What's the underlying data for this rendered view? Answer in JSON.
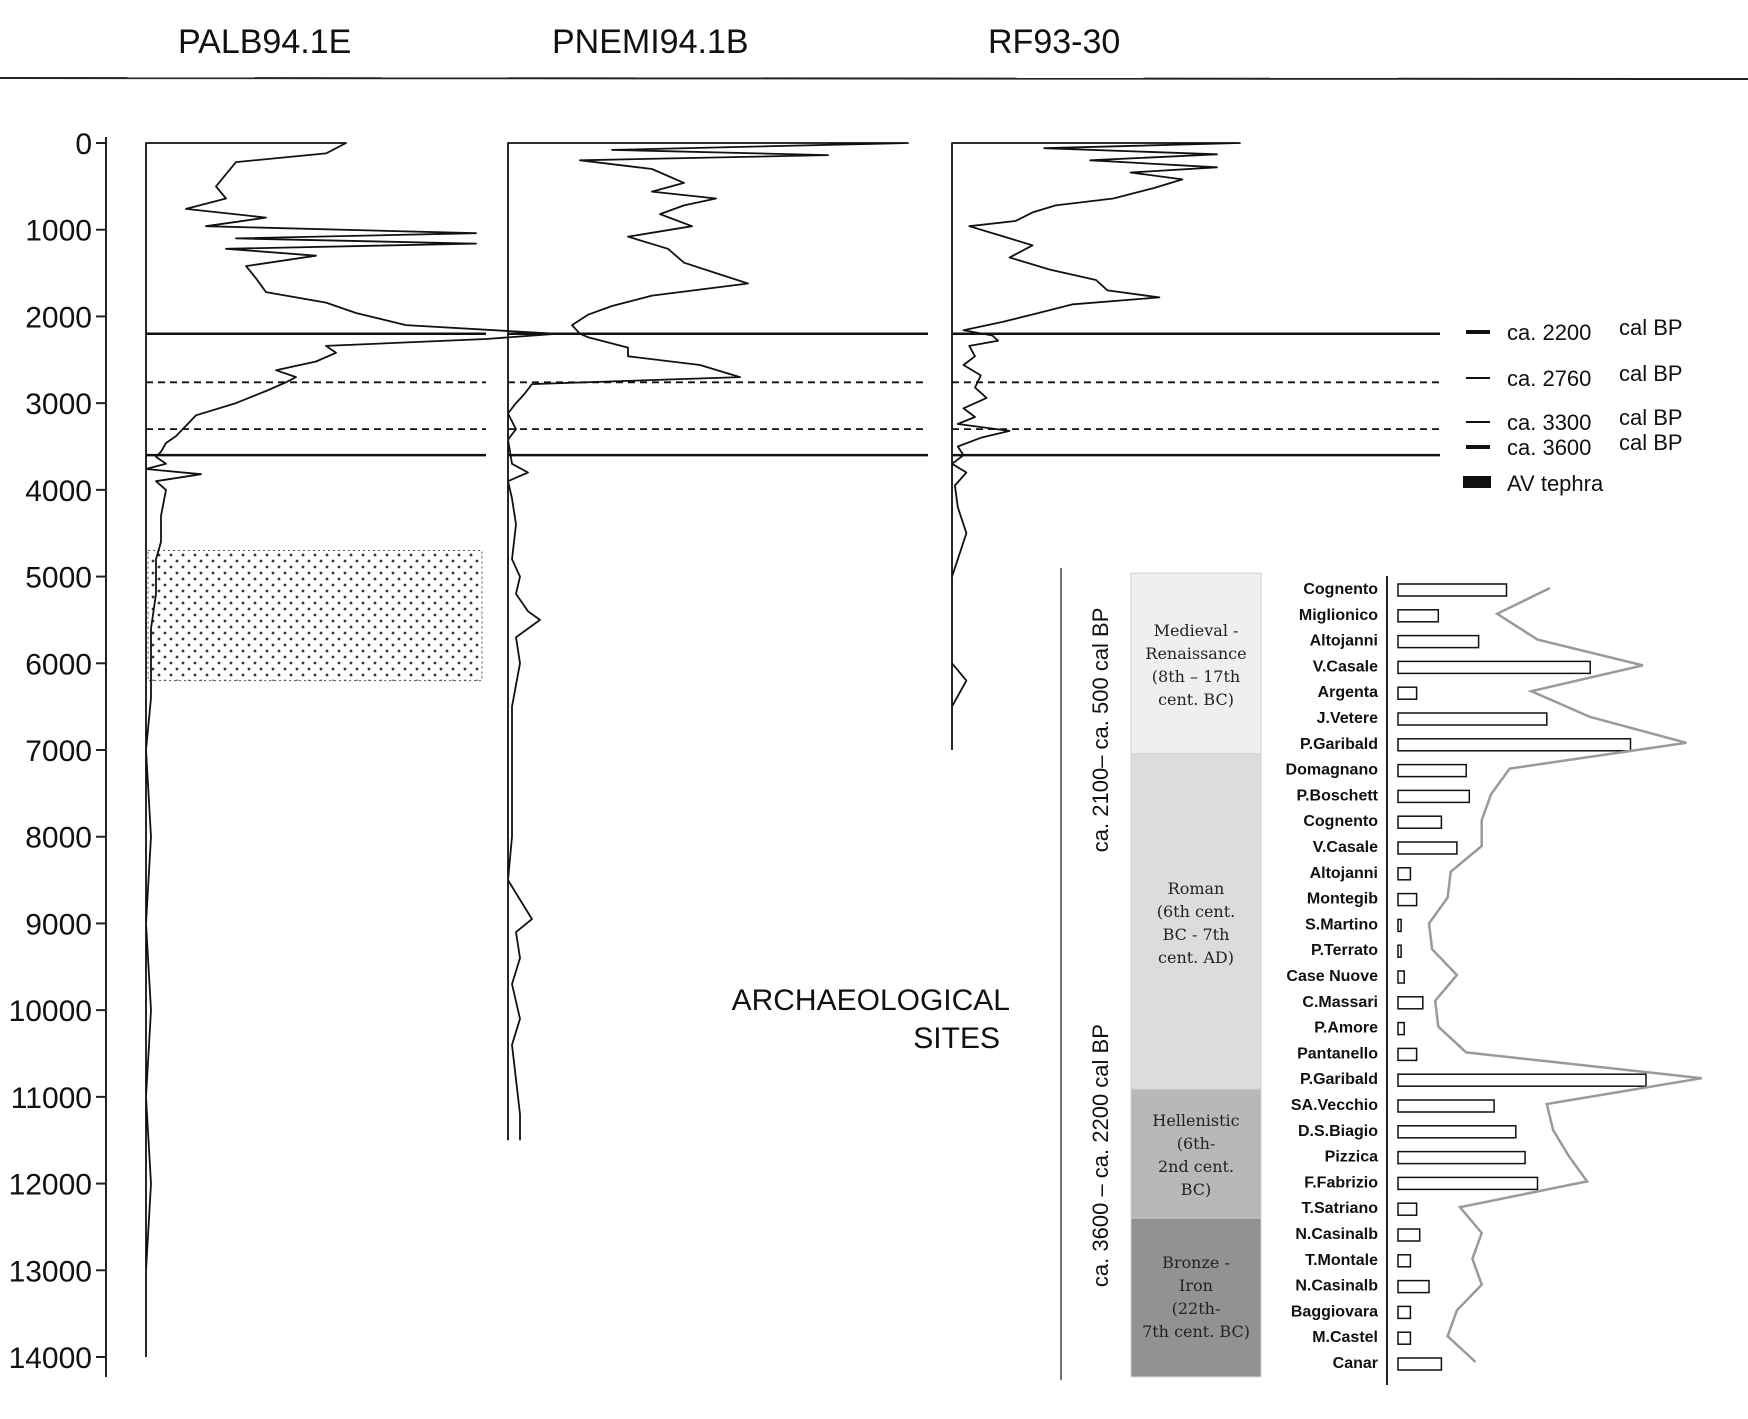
{
  "chart_data": [
    {
      "type": "line",
      "panel": "pollen-cores",
      "series": [
        {
          "name": "PALB94.1E",
          "points": [
            [
              0,
              0.4
            ],
            [
              120,
              0.36
            ],
            [
              220,
              0.18
            ],
            [
              360,
              0.16
            ],
            [
              500,
              0.14
            ],
            [
              640,
              0.16
            ],
            [
              760,
              0.08
            ],
            [
              860,
              0.24
            ],
            [
              960,
              0.12
            ],
            [
              1040,
              0.66
            ],
            [
              1100,
              0.18
            ],
            [
              1160,
              0.66
            ],
            [
              1220,
              0.16
            ],
            [
              1300,
              0.34
            ],
            [
              1420,
              0.2
            ],
            [
              1560,
              0.22
            ],
            [
              1720,
              0.24
            ],
            [
              1840,
              0.36
            ],
            [
              1960,
              0.42
            ],
            [
              2100,
              0.52
            ],
            [
              2200,
              0.82
            ],
            [
              2260,
              0.68
            ],
            [
              2340,
              0.36
            ],
            [
              2420,
              0.38
            ],
            [
              2520,
              0.34
            ],
            [
              2620,
              0.26
            ],
            [
              2700,
              0.3
            ],
            [
              2760,
              0.28
            ],
            [
              2860,
              0.24
            ],
            [
              3000,
              0.18
            ],
            [
              3140,
              0.1
            ],
            [
              3260,
              0.08
            ],
            [
              3380,
              0.06
            ],
            [
              3460,
              0.04
            ],
            [
              3560,
              0.03
            ],
            [
              3620,
              0.02
            ],
            [
              3700,
              0.04
            ],
            [
              3760,
              0.0
            ],
            [
              3820,
              0.11
            ],
            [
              3900,
              0.02
            ],
            [
              4000,
              0.04
            ],
            [
              4300,
              0.03
            ],
            [
              4600,
              0.03
            ],
            [
              4800,
              0.02
            ],
            [
              5200,
              0.02
            ],
            [
              5600,
              0.01
            ],
            [
              6000,
              0.01
            ],
            [
              6400,
              0.01
            ],
            [
              7000,
              0.0
            ],
            [
              8000,
              0.01
            ],
            [
              9000,
              0.0
            ],
            [
              10000,
              0.01
            ],
            [
              11000,
              0.0
            ],
            [
              12000,
              0.01
            ],
            [
              13000,
              0.0
            ],
            [
              14000,
              0.0
            ]
          ]
        },
        {
          "name": "PNEMI94.1B",
          "points": [
            [
              0,
              1.0
            ],
            [
              80,
              0.26
            ],
            [
              140,
              0.8
            ],
            [
              200,
              0.18
            ],
            [
              300,
              0.36
            ],
            [
              460,
              0.44
            ],
            [
              560,
              0.36
            ],
            [
              640,
              0.52
            ],
            [
              720,
              0.44
            ],
            [
              820,
              0.38
            ],
            [
              960,
              0.46
            ],
            [
              1080,
              0.3
            ],
            [
              1220,
              0.4
            ],
            [
              1380,
              0.44
            ],
            [
              1500,
              0.52
            ],
            [
              1620,
              0.6
            ],
            [
              1760,
              0.36
            ],
            [
              1880,
              0.26
            ],
            [
              1980,
              0.2
            ],
            [
              2100,
              0.16
            ],
            [
              2200,
              0.18
            ],
            [
              2240,
              0.2
            ],
            [
              2360,
              0.3
            ],
            [
              2460,
              0.3
            ],
            [
              2560,
              0.48
            ],
            [
              2700,
              0.58
            ],
            [
              2780,
              0.06
            ],
            [
              2900,
              0.04
            ],
            [
              3000,
              0.02
            ],
            [
              3120,
              0.0
            ],
            [
              3300,
              0.02
            ],
            [
              3420,
              0.0
            ],
            [
              3700,
              0.01
            ],
            [
              3800,
              0.05
            ],
            [
              3900,
              0.0
            ],
            [
              4100,
              0.01
            ],
            [
              4400,
              0.02
            ],
            [
              4800,
              0.01
            ],
            [
              5000,
              0.03
            ],
            [
              5200,
              0.02
            ],
            [
              5400,
              0.05
            ],
            [
              5500,
              0.08
            ],
            [
              5700,
              0.02
            ],
            [
              6000,
              0.03
            ],
            [
              6500,
              0.01
            ],
            [
              7000,
              0.01
            ],
            [
              8000,
              0.01
            ],
            [
              8500,
              0.0
            ],
            [
              8800,
              0.04
            ],
            [
              8950,
              0.06
            ],
            [
              9100,
              0.02
            ],
            [
              9400,
              0.03
            ],
            [
              9700,
              0.01
            ],
            [
              10100,
              0.03
            ],
            [
              10400,
              0.01
            ],
            [
              10800,
              0.02
            ],
            [
              11200,
              0.03
            ],
            [
              11500,
              0.03
            ]
          ]
        },
        {
          "name": "RF93-30",
          "points": [
            [
              0,
              1.0
            ],
            [
              60,
              0.32
            ],
            [
              130,
              0.92
            ],
            [
              200,
              0.48
            ],
            [
              280,
              0.92
            ],
            [
              340,
              0.62
            ],
            [
              420,
              0.8
            ],
            [
              520,
              0.7
            ],
            [
              640,
              0.56
            ],
            [
              720,
              0.36
            ],
            [
              800,
              0.28
            ],
            [
              900,
              0.22
            ],
            [
              960,
              0.06
            ],
            [
              1060,
              0.16
            ],
            [
              1180,
              0.28
            ],
            [
              1320,
              0.2
            ],
            [
              1460,
              0.34
            ],
            [
              1580,
              0.5
            ],
            [
              1700,
              0.54
            ],
            [
              1780,
              0.72
            ],
            [
              1860,
              0.42
            ],
            [
              1960,
              0.3
            ],
            [
              2060,
              0.18
            ],
            [
              2160,
              0.04
            ],
            [
              2220,
              0.14
            ],
            [
              2280,
              0.16
            ],
            [
              2340,
              0.06
            ],
            [
              2460,
              0.08
            ],
            [
              2560,
              0.04
            ],
            [
              2680,
              0.1
            ],
            [
              2820,
              0.08
            ],
            [
              2940,
              0.12
            ],
            [
              3060,
              0.04
            ],
            [
              3160,
              0.08
            ],
            [
              3240,
              0.02
            ],
            [
              3320,
              0.2
            ],
            [
              3400,
              0.1
            ],
            [
              3500,
              0.02
            ],
            [
              3600,
              0.04
            ],
            [
              3700,
              0.0
            ],
            [
              3800,
              0.05
            ],
            [
              3950,
              0.01
            ],
            [
              4200,
              0.02
            ],
            [
              4500,
              0.05
            ],
            [
              4800,
              0.02
            ],
            [
              5000,
              0.0
            ],
            [
              5500,
              0.0
            ],
            [
              6000,
              0.0
            ],
            [
              6200,
              0.05
            ],
            [
              6500,
              0.0
            ],
            [
              7000,
              0.0
            ]
          ]
        }
      ],
      "ylim": [
        0,
        14000
      ],
      "y_ticks": [
        "0",
        "1000",
        "2000",
        "3000",
        "4000",
        "5000",
        "6000",
        "7000",
        "8000",
        "9000",
        "10000",
        "11000",
        "12000",
        "13000",
        "14000"
      ],
      "reference_lines": [
        {
          "age": 2200,
          "style": "solid",
          "label": "ca. 2200",
          "unit": "cal BP"
        },
        {
          "age": 2760,
          "style": "dashed",
          "label": "ca. 2760",
          "unit": "cal BP"
        },
        {
          "age": 3300,
          "style": "dashed",
          "label": "ca. 3300",
          "unit": "cal BP"
        },
        {
          "age": 3600,
          "style": "solid",
          "label": "ca. 3600",
          "unit": "cal BP"
        }
      ],
      "tephra_band": {
        "label": "AV tephra",
        "core": "PALB94.1E",
        "from": 4700,
        "to": 6200
      }
    },
    {
      "type": "bar",
      "panel": "archaeological-sites",
      "title_lines": [
        "ARCHAEOLOGICAL",
        "SITES"
      ],
      "categories": [
        "Cognento",
        "Miglionico",
        "Altojanni",
        "V.Casale",
        "Argenta",
        "J.Vetere",
        "P.Garibald",
        "Domagnano",
        "P.Boschett",
        "Cognento",
        "V.Casale",
        "Altojanni",
        "Montegib",
        "S.Martino",
        "P.Terrato",
        "Case Nuove",
        "C.Massari",
        "P.Amore",
        "Pantanello",
        "P.Garibald",
        "SA.Vecchio",
        "D.S.Biagio",
        "Pizzica",
        "F.Fabrizio",
        "T.Satriano",
        "N.Casinalb",
        "T.Montale",
        "N.Casinalb",
        "Baggiovara",
        "M.Castel",
        "Canar"
      ],
      "values": [
        0.35,
        0.13,
        0.26,
        0.62,
        0.06,
        0.48,
        0.75,
        0.22,
        0.23,
        0.14,
        0.19,
        0.04,
        0.06,
        0.01,
        0.01,
        0.02,
        0.08,
        0.02,
        0.06,
        0.8,
        0.31,
        0.38,
        0.41,
        0.45,
        0.06,
        0.07,
        0.04,
        0.1,
        0.04,
        0.04,
        0.14
      ],
      "trend": [
        0.49,
        0.32,
        0.45,
        0.79,
        0.43,
        0.62,
        0.93,
        0.36,
        0.3,
        0.27,
        0.27,
        0.17,
        0.16,
        0.1,
        0.11,
        0.19,
        0.12,
        0.13,
        0.22,
        0.98,
        0.48,
        0.5,
        0.55,
        0.61,
        0.2,
        0.27,
        0.24,
        0.27,
        0.19,
        0.16,
        0.25
      ],
      "periods": [
        {
          "lines": [
            "Medieval -",
            "Renaissance",
            "(8th – 17th",
            "cent. BC)"
          ],
          "from": 0,
          "to": 6,
          "color": "#efefef"
        },
        {
          "lines": [
            "Roman",
            "(6th cent.",
            "BC -  7th",
            "cent. AD)"
          ],
          "from": 7,
          "to": 19,
          "color": "#dcdcdc"
        },
        {
          "lines": [
            "Hellenistic",
            "(6th-",
            "2nd cent.",
            "BC)"
          ],
          "from": 20,
          "to": 24,
          "color": "#b8b8b8"
        },
        {
          "lines": [
            "Bronze -",
            "Iron",
            "(22th-",
            "7th cent. BC)"
          ],
          "from": 25,
          "to": 30,
          "color": "#929292"
        }
      ],
      "intervals": [
        {
          "label": "ca. 2100– ca. 500 cal BP",
          "from": 0,
          "to": 11
        },
        {
          "label": "ca. 3600 – ca. 2200 cal BP",
          "from": 14,
          "to": 30
        }
      ]
    }
  ]
}
